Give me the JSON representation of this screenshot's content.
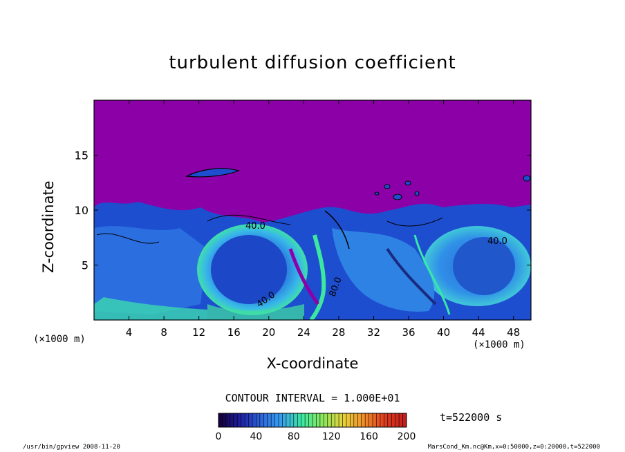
{
  "chart_data": {
    "type": "heatmap",
    "title": "turbulent diffusion coefficient",
    "xlabel": "X-coordinate",
    "ylabel": "Z-coordinate",
    "x_unit": "(×1000 m)",
    "z_unit": "(×1000 m)",
    "xlim": [
      0,
      50
    ],
    "ylim": [
      0,
      20
    ],
    "x_ticks": [
      4,
      8,
      12,
      16,
      20,
      24,
      28,
      32,
      36,
      40,
      44,
      48
    ],
    "y_ticks": [
      5,
      10,
      15
    ],
    "contour_labels": [
      "40.0",
      "40.0",
      "40.0",
      "80.0"
    ],
    "colorbar": {
      "min": 0,
      "max": 200,
      "ticks": [
        0,
        40,
        80,
        120,
        160,
        200
      ],
      "colors": [
        "#14003a",
        "#1e1ea0",
        "#2c64dc",
        "#36a0f0",
        "#3ce8a0",
        "#8ce85a",
        "#e8d23c",
        "#f08c28",
        "#e03c1e",
        "#c01e1e"
      ]
    },
    "colors": {
      "background_field": "#8c00a8",
      "mid_field": "#1e5ad8",
      "high_field": "#3ce0a0"
    }
  },
  "contour_interval": "CONTOUR INTERVAL = 1.000E+01",
  "time_label": "t=522000 s",
  "footer_left": "/usr/bin/gpview  2008-11-20",
  "footer_right": "MarsCond_Km.nc@Km,x=0:50000,z=0:20000,t=522000"
}
